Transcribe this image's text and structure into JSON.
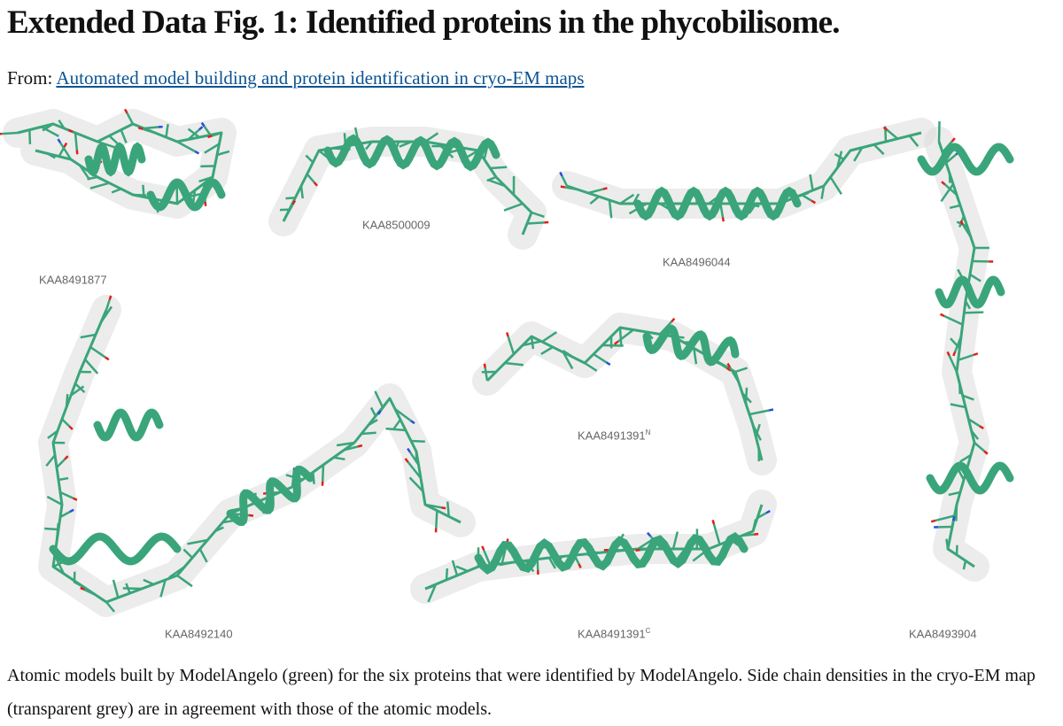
{
  "header": {
    "title": "Extended Data Fig. 1: Identified proteins in the phycobilisome.",
    "from_label": "From:",
    "article_link": "Automated model building and protein identification in cryo-EM maps"
  },
  "figure": {
    "panels": [
      {
        "label": "KAA8491877",
        "sup": ""
      },
      {
        "label": "KAA8500009",
        "sup": ""
      },
      {
        "label": "KAA8496044",
        "sup": ""
      },
      {
        "label": "KAA8491391",
        "sup": "N"
      },
      {
        "label": "KAA8492140",
        "sup": ""
      },
      {
        "label": "KAA8491391",
        "sup": "C"
      },
      {
        "label": "KAA8493904",
        "sup": ""
      }
    ],
    "colors": {
      "model": "#3aa57a",
      "density": "#dcdcdc",
      "oxygen": "#e0201a",
      "nitrogen": "#2a4de0",
      "sulfur": "#e8e020"
    }
  },
  "caption": "Atomic models built by ModelAngelo (green) for the six proteins that were identified by ModelAngelo. Side chain densities in the cryo-EM map (transparent grey) are in agreement with those of the atomic models."
}
